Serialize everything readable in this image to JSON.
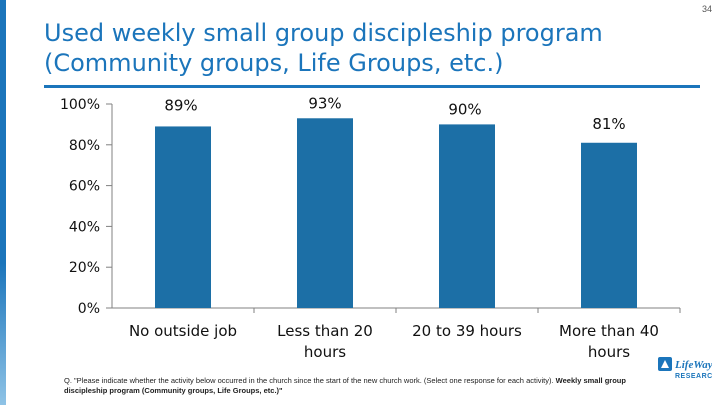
{
  "slide": {
    "page_number": "34",
    "title_line1": "Used weekly small group discipleship program",
    "title_line2": "(Community groups, Life Groups, etc.)",
    "footnote_plain": "Q. \"Please indicate whether the activity below occurred in the church since the start of the new church work. (Select one response for each activity). ",
    "footnote_bold": "Weekly small group discipleship program (Community groups, Life Groups, etc.)\"",
    "logo_text": "LifeWay RESEARCH",
    "colors": {
      "accent": "#1b75bb",
      "bar": "#1c6fa6"
    }
  },
  "chart_data": {
    "type": "bar",
    "title": "Used weekly small group discipleship program (Community groups, Life Groups, etc.)",
    "categories": [
      "No outside job",
      "Less than 20 hours",
      "20 to 39 hours",
      "More than 40 hours"
    ],
    "category_lines": [
      [
        "No outside job"
      ],
      [
        "Less than 20",
        "hours"
      ],
      [
        "20 to 39 hours"
      ],
      [
        "More than 40",
        "hours"
      ]
    ],
    "values": [
      89,
      93,
      90,
      81
    ],
    "data_labels": [
      "89%",
      "93%",
      "90%",
      "81%"
    ],
    "ylim": [
      0,
      100
    ],
    "yticks": [
      0,
      20,
      40,
      60,
      80,
      100
    ],
    "ytick_labels": [
      "0%",
      "20%",
      "40%",
      "60%",
      "80%",
      "100%"
    ],
    "xlabel": "",
    "ylabel": "",
    "grid": false,
    "legend": "none"
  }
}
